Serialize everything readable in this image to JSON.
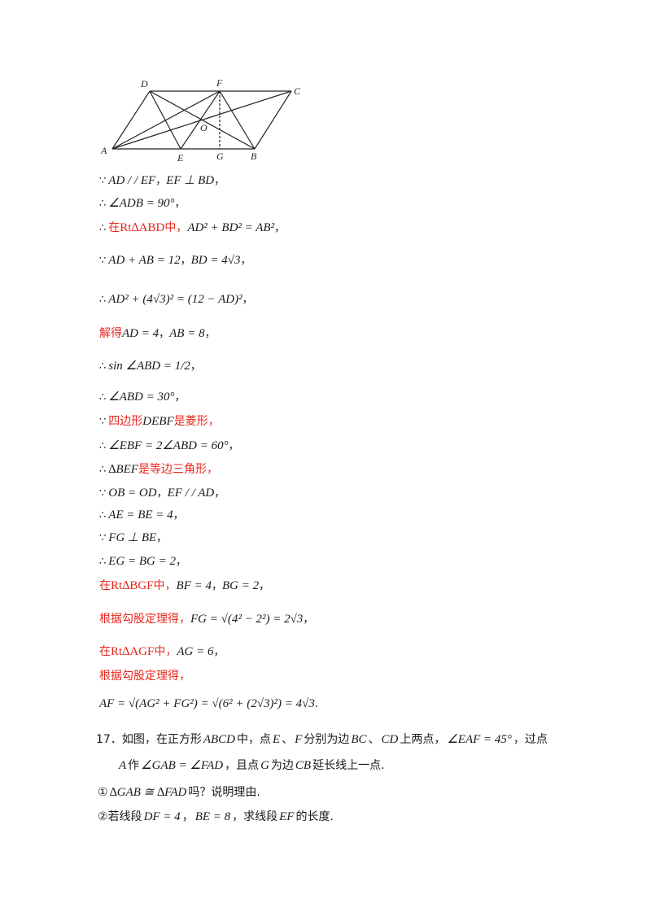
{
  "figure": {
    "labels": {
      "D": "D",
      "F": "F",
      "C": "C",
      "O": "O",
      "A": "A",
      "E": "E",
      "G": "G",
      "B": "B"
    }
  },
  "solution": [
    {
      "sym": "∵",
      "parts": [
        {
          "t": "AD / / EF",
          "c": "m"
        },
        {
          "t": "，",
          "c": "p"
        },
        {
          "t": "EF ⊥ BD",
          "c": "m"
        },
        {
          "t": "，",
          "c": "p"
        }
      ]
    },
    {
      "sym": "∴",
      "parts": [
        {
          "t": "∠ADB = 90°",
          "c": "m"
        },
        {
          "t": "，",
          "c": "p"
        }
      ]
    },
    {
      "sym": "∴",
      "parts": [
        {
          "t": "在",
          "c": "r"
        },
        {
          "t": "Rt∆ABD",
          "c": "rn"
        },
        {
          "t": "中，",
          "c": "r"
        },
        {
          "t": "AD² + BD² = AB²",
          "c": "m"
        },
        {
          "t": "，",
          "c": "p"
        }
      ]
    },
    {
      "sym": "∵",
      "parts": [
        {
          "t": "AD + AB = 12",
          "c": "m"
        },
        {
          "t": "，",
          "c": "p"
        },
        {
          "t": "BD = 4√3",
          "c": "m"
        },
        {
          "t": "，",
          "c": "p"
        }
      ]
    },
    {
      "sym": "∴",
      "parts": [
        {
          "t": "AD² + (4√3)² = (12 − AD)²",
          "c": "m"
        },
        {
          "t": "，",
          "c": "p"
        }
      ]
    },
    {
      "sym": "",
      "parts": [
        {
          "t": "解得",
          "c": "r"
        },
        {
          "t": "AD = 4",
          "c": "m"
        },
        {
          "t": "，",
          "c": "p"
        },
        {
          "t": "AB = 8",
          "c": "m"
        },
        {
          "t": "，",
          "c": "p"
        }
      ]
    },
    {
      "sym": "∴",
      "parts": [
        {
          "t": "sin ∠ABD = 1/2",
          "c": "m"
        },
        {
          "t": "，",
          "c": "p"
        }
      ]
    },
    {
      "sym": "∴",
      "parts": [
        {
          "t": "∠ABD = 30°",
          "c": "m"
        },
        {
          "t": "，",
          "c": "p"
        }
      ]
    },
    {
      "sym": "∵",
      "parts": [
        {
          "t": "四边形",
          "c": "r"
        },
        {
          "t": "DEBF",
          "c": "m"
        },
        {
          "t": "是菱形，",
          "c": "r"
        }
      ]
    },
    {
      "sym": "∴",
      "parts": [
        {
          "t": "∠EBF = 2∠ABD = 60°",
          "c": "m"
        },
        {
          "t": "，",
          "c": "p"
        }
      ]
    },
    {
      "sym": "∴",
      "parts": [
        {
          "t": "∆BEF",
          "c": "m"
        },
        {
          "t": "是等边三角形，",
          "c": "r"
        }
      ]
    },
    {
      "sym": "∵",
      "parts": [
        {
          "t": "OB = OD",
          "c": "m"
        },
        {
          "t": "，",
          "c": "p"
        },
        {
          "t": "EF / / AD",
          "c": "m"
        },
        {
          "t": "，",
          "c": "p"
        }
      ]
    },
    {
      "sym": "∴",
      "parts": [
        {
          "t": "AE = BE = 4",
          "c": "m"
        },
        {
          "t": "，",
          "c": "p"
        }
      ]
    },
    {
      "sym": "∵",
      "parts": [
        {
          "t": "FG ⊥ BE",
          "c": "m"
        },
        {
          "t": "，",
          "c": "p"
        }
      ]
    },
    {
      "sym": "∴",
      "parts": [
        {
          "t": "EG = BG = 2",
          "c": "m"
        },
        {
          "t": "，",
          "c": "p"
        }
      ]
    },
    {
      "sym": "",
      "parts": [
        {
          "t": "在",
          "c": "r"
        },
        {
          "t": "Rt∆BGF",
          "c": "rn"
        },
        {
          "t": "中，",
          "c": "r"
        },
        {
          "t": "BF = 4",
          "c": "m"
        },
        {
          "t": "，",
          "c": "p"
        },
        {
          "t": "BG = 2",
          "c": "m"
        },
        {
          "t": "，",
          "c": "p"
        }
      ]
    },
    {
      "sym": "",
      "parts": [
        {
          "t": "根据勾股定理得，",
          "c": "r"
        },
        {
          "t": "FG = √(4² − 2²) = 2√3",
          "c": "m"
        },
        {
          "t": "，",
          "c": "p"
        }
      ]
    },
    {
      "sym": "",
      "parts": [
        {
          "t": "在",
          "c": "r"
        },
        {
          "t": "Rt∆AGF",
          "c": "rn"
        },
        {
          "t": "中，",
          "c": "r"
        },
        {
          "t": "AG = 6",
          "c": "m"
        },
        {
          "t": "，",
          "c": "p"
        }
      ]
    },
    {
      "sym": "",
      "parts": [
        {
          "t": "根据勾股定理得，",
          "c": "r"
        }
      ]
    },
    {
      "sym": "",
      "parts": [
        {
          "t": "AF = √(AG² + FG²) = √(6² + (2√3)²) = 4√3",
          "c": "m"
        },
        {
          "t": ".",
          "c": "p"
        }
      ]
    }
  ],
  "problem": {
    "line1": [
      {
        "t": "17．如图，在正方形",
        "c": "n"
      },
      {
        "t": "ABCD",
        "c": "m"
      },
      {
        "t": "中，点",
        "c": "n"
      },
      {
        "t": "E",
        "c": "m"
      },
      {
        "t": "、",
        "c": "n"
      },
      {
        "t": "F",
        "c": "m"
      },
      {
        "t": "分别为边",
        "c": "n"
      },
      {
        "t": "BC",
        "c": "m"
      },
      {
        "t": "、",
        "c": "n"
      },
      {
        "t": "CD",
        "c": "m"
      },
      {
        "t": "上两点，",
        "c": "n"
      },
      {
        "t": "∠EAF = 45°",
        "c": "m"
      },
      {
        "t": "，过点",
        "c": "n"
      }
    ],
    "line2": [
      {
        "t": "A",
        "c": "m"
      },
      {
        "t": "作",
        "c": "n"
      },
      {
        "t": "∠GAB = ∠FAD",
        "c": "m"
      },
      {
        "t": "，且点",
        "c": "n"
      },
      {
        "t": "G",
        "c": "m"
      },
      {
        "t": "为边",
        "c": "n"
      },
      {
        "t": "CB",
        "c": "m"
      },
      {
        "t": "延长线上一点.",
        "c": "n"
      }
    ],
    "line3": [
      {
        "t": "①",
        "c": "n"
      },
      {
        "t": "∆GAB ≅ ∆FAD",
        "c": "m"
      },
      {
        "t": "吗？说明理由.",
        "c": "n"
      }
    ],
    "line4": [
      {
        "t": "②若线段",
        "c": "n"
      },
      {
        "t": "DF = 4",
        "c": "m"
      },
      {
        "t": "，",
        "c": "n"
      },
      {
        "t": "BE = 8",
        "c": "m"
      },
      {
        "t": "，求线段",
        "c": "n"
      },
      {
        "t": "EF",
        "c": "m"
      },
      {
        "t": "的长度.",
        "c": "n"
      }
    ]
  }
}
